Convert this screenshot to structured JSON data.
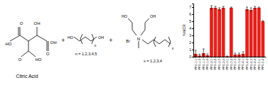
{
  "chart_data": {
    "type": "bar",
    "ylabel": "%WCR",
    "categories": [
      "PPG-1-1",
      "PPG-1-2",
      "PPG-1-3",
      "PPG-1-4",
      "PPG-2-1",
      "PPG-2-2",
      "PPG-2-3",
      "PPG-2-4",
      "PPG-3-1",
      "PPG-3-2",
      "PPG-3-3",
      "PPG-3-4",
      "PPG-4-1",
      "PPG-4-2",
      "PPG-4-3",
      "PPG-4-4",
      "PPG-5-1",
      "PPG-5-2"
    ],
    "values": [
      0.4,
      0.15,
      0.5,
      0.2,
      6.9,
      6.9,
      6.7,
      6.9,
      0.05,
      6.9,
      0.3,
      0.3,
      0.4,
      6.7,
      6.6,
      6.9,
      6.9,
      5.0
    ],
    "errors": [
      0.5,
      0.2,
      0.6,
      0.2,
      0.3,
      0.2,
      0.2,
      0.2,
      0.05,
      0.1,
      0.2,
      0.2,
      0.3,
      0.3,
      0.3,
      0.2,
      0.1,
      0.1
    ],
    "color": "#e3211c",
    "ylim": [
      0,
      7.5
    ],
    "yticks": [
      0,
      1,
      2,
      3,
      4,
      5,
      6,
      7
    ]
  },
  "diagram": {
    "citric_acid": {
      "label": "Citric Acid",
      "atoms": [
        "HO",
        "O",
        "OH",
        "O",
        "HO",
        "O",
        "OH"
      ]
    },
    "diol": {
      "atoms": [
        "HO",
        "OH"
      ],
      "repeat": "n",
      "note": "n = 1,2,3,4,5"
    },
    "ammonium": {
      "atoms": [
        "HO",
        "OH",
        "N",
        "Br"
      ],
      "repeat": "x",
      "note": "x = 1,2,3,4"
    },
    "operators": [
      "+",
      "+"
    ]
  }
}
